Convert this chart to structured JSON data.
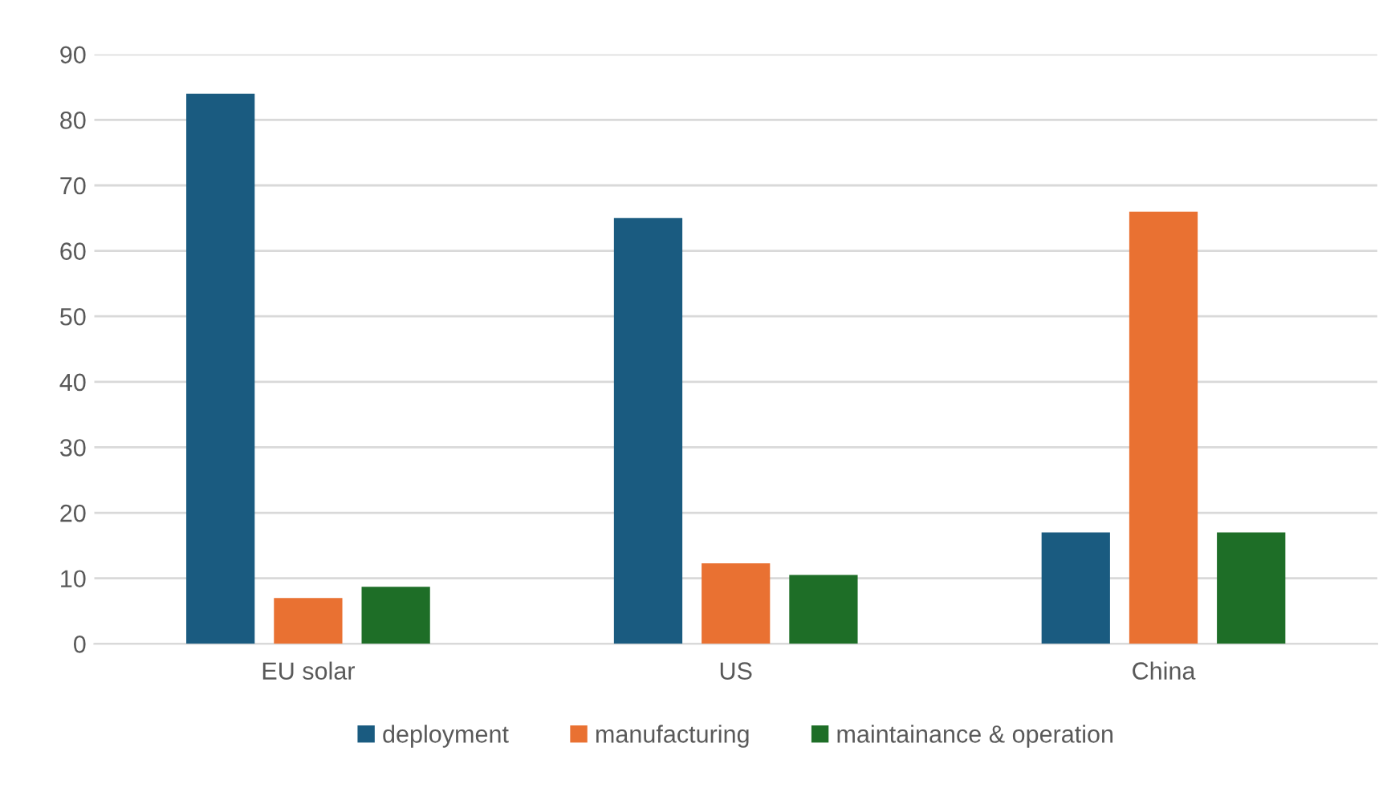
{
  "chart_data": {
    "type": "bar",
    "categories": [
      "EU solar",
      "US",
      "China"
    ],
    "series": [
      {
        "name": "deployment",
        "color": "#1a5b80",
        "values": [
          84,
          65,
          17
        ]
      },
      {
        "name": "manufacturing",
        "color": "#e97132",
        "values": [
          7,
          12.3,
          66
        ]
      },
      {
        "name": "maintainance & operation",
        "color": "#1e6e27",
        "values": [
          8.7,
          10.5,
          17
        ]
      }
    ],
    "ylim": [
      0,
      90
    ],
    "yticks": [
      0,
      10,
      20,
      30,
      40,
      50,
      60,
      70,
      80,
      90
    ],
    "grid": "y",
    "legend": "bottom"
  }
}
